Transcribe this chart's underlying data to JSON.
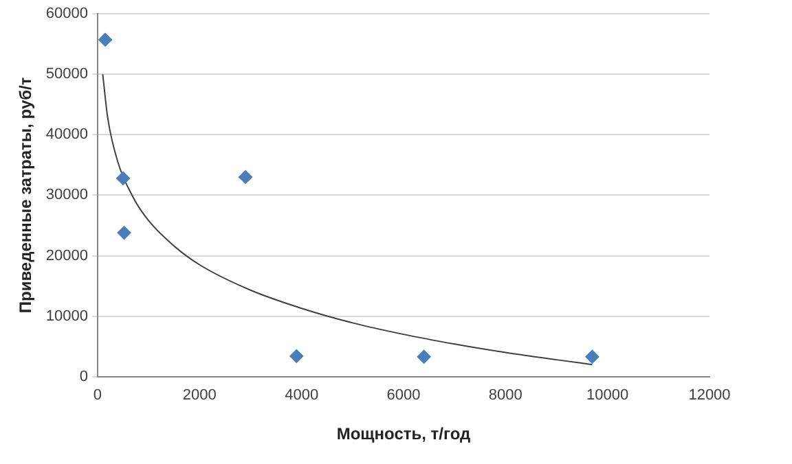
{
  "chart_data": {
    "type": "scatter",
    "xlabel": "Мощность, т/год",
    "ylabel": "Приведенные затраты, руб/т",
    "xlim": [
      0,
      12000
    ],
    "xticks": [
      0,
      2000,
      4000,
      6000,
      8000,
      10000,
      12000
    ],
    "ylim": [
      0,
      60000
    ],
    "yticks": [
      0,
      10000,
      20000,
      30000,
      40000,
      50000,
      60000
    ],
    "grid": "y",
    "legend": false,
    "series": [
      {
        "type": "scatter",
        "color": "#4a7ebb",
        "marker": "diamond",
        "x": [
          150,
          500,
          520,
          2900,
          3900,
          6400,
          9700
        ],
        "values": [
          55700,
          32800,
          23800,
          33000,
          3400,
          3300,
          3300
        ]
      },
      {
        "type": "line",
        "color": "#404040",
        "marker": "none",
        "x": [
          100,
          200,
          400,
          700,
          1000,
          1500,
          2000,
          3000,
          4000,
          5000,
          6000,
          7000,
          8000,
          9000,
          9700
        ],
        "values": [
          50000,
          42700,
          35400,
          29600,
          25800,
          21600,
          18500,
          14300,
          11300,
          8900,
          7000,
          5400,
          4000,
          2800,
          2000
        ]
      }
    ]
  }
}
